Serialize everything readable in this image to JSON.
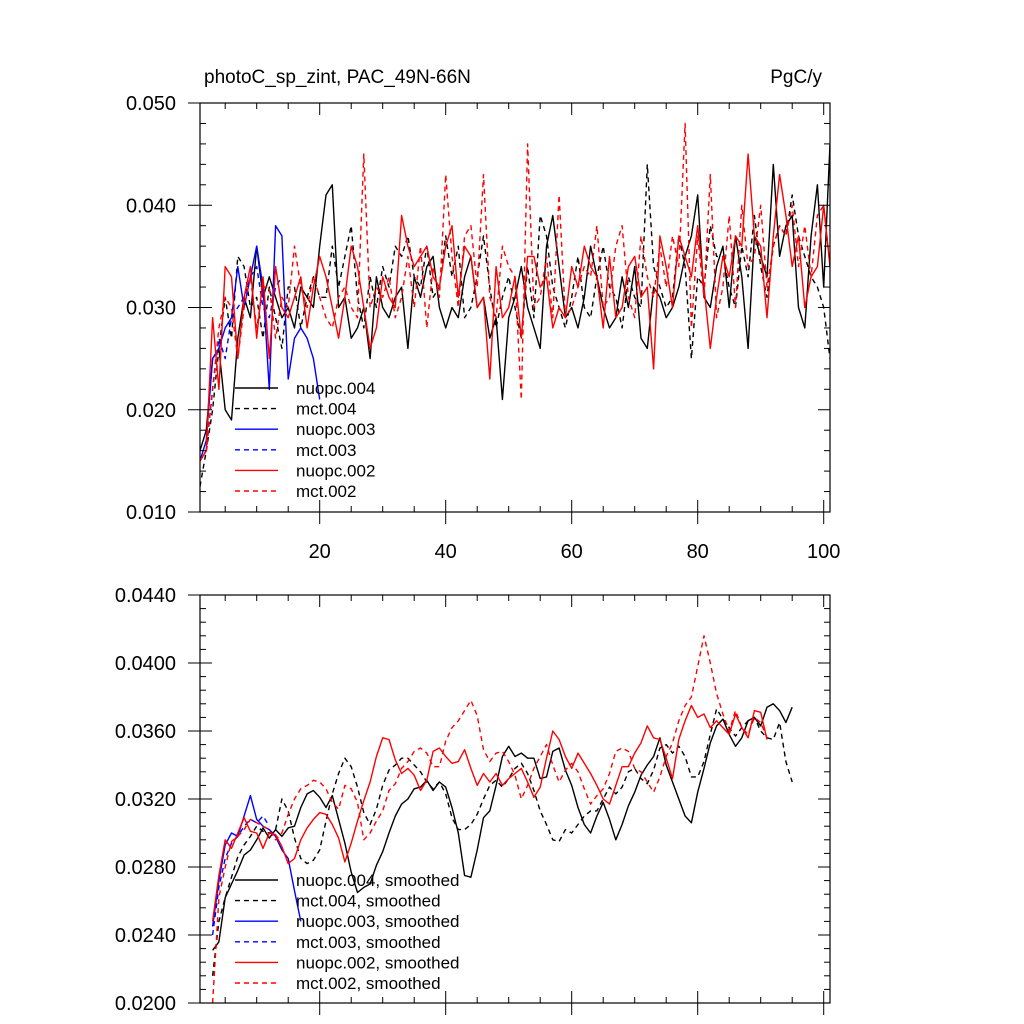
{
  "chart_data": [
    {
      "type": "line",
      "title": "photoC_sp_zint, PAC_49N-66N",
      "units": "PgC/y",
      "xlim": [
        1,
        101
      ],
      "ylim": [
        0.01,
        0.05
      ],
      "xticks": [
        20,
        40,
        60,
        80,
        100
      ],
      "xtick_labels": [
        "20",
        "40",
        "60",
        "80",
        "100"
      ],
      "yticks": [
        0.01,
        0.02,
        0.03,
        0.04,
        0.05
      ],
      "ytick_labels": [
        "0.010",
        "0.020",
        "0.030",
        "0.040",
        "0.050"
      ],
      "legend": [
        "nuopc.004",
        "mct.004",
        "nuopc.003",
        "mct.003",
        "nuopc.002",
        "mct.002"
      ],
      "series": [
        {
          "name": "nuopc.004",
          "color": "#000000",
          "dash": false,
          "x_start": 1,
          "values": [
            0.016,
            0.018,
            0.025,
            0.026,
            0.02,
            0.019,
            0.027,
            0.031,
            0.029,
            0.036,
            0.031,
            0.033,
            0.031,
            0.029,
            0.03,
            0.028,
            0.032,
            0.031,
            0.03,
            0.036,
            0.041,
            0.042,
            0.03,
            0.031,
            0.027,
            0.028,
            0.03,
            0.025,
            0.033,
            0.03,
            0.029,
            0.031,
            0.032,
            0.026,
            0.033,
            0.031,
            0.034,
            0.035,
            0.03,
            0.028,
            0.03,
            0.029,
            0.033,
            0.035,
            0.03,
            0.031,
            0.027,
            0.029,
            0.021,
            0.029,
            0.031,
            0.034,
            0.03,
            0.028,
            0.026,
            0.036,
            0.039,
            0.034,
            0.029,
            0.03,
            0.028,
            0.031,
            0.036,
            0.033,
            0.03,
            0.028,
            0.029,
            0.033,
            0.03,
            0.034,
            0.027,
            0.026,
            0.032,
            0.031,
            0.029,
            0.03,
            0.032,
            0.035,
            0.037,
            0.041,
            0.031,
            0.03,
            0.034,
            0.036,
            0.03,
            0.037,
            0.033,
            0.026,
            0.037,
            0.035,
            0.033,
            0.044,
            0.035,
            0.038,
            0.039,
            0.03,
            0.028,
            0.037,
            0.042,
            0.032,
            0.046
          ]
        },
        {
          "name": "mct.004",
          "color": "#000000",
          "dash": true,
          "x_start": 1,
          "values": [
            0.0125,
            0.016,
            0.02,
            0.026,
            0.031,
            0.027,
            0.035,
            0.034,
            0.03,
            0.031,
            0.027,
            0.032,
            0.029,
            0.026,
            0.032,
            0.032,
            0.028,
            0.031,
            0.033,
            0.031,
            0.031,
            0.036,
            0.032,
            0.035,
            0.038,
            0.031,
            0.028,
            0.033,
            0.03,
            0.034,
            0.032,
            0.036,
            0.035,
            0.037,
            0.033,
            0.032,
            0.036,
            0.031,
            0.032,
            0.037,
            0.033,
            0.036,
            0.029,
            0.03,
            0.033,
            0.037,
            0.032,
            0.028,
            0.031,
            0.033,
            0.03,
            0.027,
            0.034,
            0.029,
            0.039,
            0.037,
            0.032,
            0.03,
            0.028,
            0.031,
            0.035,
            0.03,
            0.029,
            0.033,
            0.036,
            0.032,
            0.031,
            0.028,
            0.033,
            0.031,
            0.03,
            0.044,
            0.034,
            0.032,
            0.03,
            0.031,
            0.037,
            0.034,
            0.025,
            0.033,
            0.032,
            0.038,
            0.035,
            0.035,
            0.032,
            0.03,
            0.036,
            0.033,
            0.039,
            0.034,
            0.031,
            0.036,
            0.038,
            0.037,
            0.041,
            0.037,
            0.035,
            0.033,
            0.032,
            0.03,
            0.025
          ]
        },
        {
          "name": "nuopc.003",
          "color": "#0000ff",
          "dash": false,
          "x_start": 1,
          "values": [
            0.015,
            0.017,
            0.025,
            0.026,
            0.028,
            0.029,
            0.034,
            0.03,
            0.033,
            0.036,
            0.032,
            0.022,
            0.038,
            0.037,
            0.023,
            0.027,
            0.028,
            0.027,
            0.025,
            0.021
          ]
        },
        {
          "name": "mct.003",
          "color": "#0000ff",
          "dash": true,
          "x_start": 1,
          "values": [
            0.015,
            0.016,
            0.022,
            0.027,
            0.025,
            0.029,
            0.03,
            0.031,
            0.033,
            0.034,
            0.03,
            0.029,
            0.032,
            0.033
          ]
        },
        {
          "name": "nuopc.002",
          "color": "#ff0000",
          "dash": false,
          "x_start": 1,
          "values": [
            0.015,
            0.016,
            0.029,
            0.022,
            0.034,
            0.033,
            0.025,
            0.031,
            0.034,
            0.027,
            0.033,
            0.025,
            0.034,
            0.03,
            0.029,
            0.031,
            0.033,
            0.028,
            0.032,
            0.035,
            0.033,
            0.03,
            0.027,
            0.031,
            0.036,
            0.034,
            0.03,
            0.026,
            0.028,
            0.033,
            0.031,
            0.03,
            0.039,
            0.036,
            0.034,
            0.035,
            0.036,
            0.033,
            0.032,
            0.036,
            0.038,
            0.031,
            0.036,
            0.035,
            0.03,
            0.031,
            0.023,
            0.034,
            0.029,
            0.03,
            0.033,
            0.027,
            0.035,
            0.035,
            0.032,
            0.033,
            0.028,
            0.03,
            0.029,
            0.034,
            0.032,
            0.036,
            0.034,
            0.033,
            0.028,
            0.035,
            0.029,
            0.03,
            0.034,
            0.035,
            0.031,
            0.032,
            0.024,
            0.037,
            0.034,
            0.03,
            0.037,
            0.035,
            0.033,
            0.038,
            0.032,
            0.026,
            0.031,
            0.035,
            0.033,
            0.037,
            0.036,
            0.045,
            0.037,
            0.036,
            0.029,
            0.037,
            0.043,
            0.039,
            0.034,
            0.037,
            0.03,
            0.033,
            0.034,
            0.04,
            0.034
          ]
        },
        {
          "name": "mct.002",
          "color": "#ff0000",
          "dash": true,
          "x_start": 1,
          "values": [
            0.015,
            0.016,
            0.022,
            0.028,
            0.031,
            0.03,
            0.025,
            0.03,
            0.033,
            0.028,
            0.032,
            0.032,
            0.027,
            0.031,
            0.03,
            0.036,
            0.032,
            0.03,
            0.033,
            0.031,
            0.029,
            0.028,
            0.031,
            0.032,
            0.03,
            0.029,
            0.045,
            0.03,
            0.032,
            0.031,
            0.033,
            0.029,
            0.031,
            0.035,
            0.03,
            0.036,
            0.028,
            0.034,
            0.031,
            0.043,
            0.035,
            0.03,
            0.037,
            0.038,
            0.032,
            0.043,
            0.031,
            0.029,
            0.036,
            0.034,
            0.033,
            0.021,
            0.046,
            0.03,
            0.031,
            0.035,
            0.029,
            0.041,
            0.029,
            0.03,
            0.032,
            0.034,
            0.033,
            0.038,
            0.03,
            0.031,
            0.036,
            0.038,
            0.031,
            0.029,
            0.037,
            0.033,
            0.031,
            0.036,
            0.032,
            0.037,
            0.034,
            0.048,
            0.028,
            0.037,
            0.031,
            0.043,
            0.029,
            0.032,
            0.039,
            0.03,
            0.04,
            0.034,
            0.035,
            0.04,
            0.032,
            0.036,
            0.038,
            0.037,
            0.04,
            0.034,
            0.038,
            0.033,
            0.039,
            0.04,
            0.034
          ]
        }
      ]
    },
    {
      "type": "line",
      "title": "",
      "xlim": [
        1,
        101
      ],
      "ylim": [
        0.02,
        0.044
      ],
      "xticks": [
        20,
        40,
        60,
        80,
        100
      ],
      "yticks": [
        0.02,
        0.024,
        0.028,
        0.032,
        0.036,
        0.04,
        0.044
      ],
      "ytick_labels": [
        "0.0200",
        "0.0240",
        "0.0280",
        "0.0320",
        "0.0360",
        "0.0400",
        "0.0440"
      ],
      "legend": [
        "nuopc.004, smoothed",
        "mct.004, smoothed",
        "nuopc.003, smoothed",
        "mct.003, smoothed",
        "nuopc.002, smoothed",
        "mct.002, smoothed"
      ],
      "series": [
        {
          "name": "nuopc.004, smoothed",
          "color": "#000000",
          "dash": false,
          "x_start": 3,
          "values": [
            0.0231,
            0.0236,
            0.0262,
            0.027,
            0.0278,
            0.0287,
            0.029,
            0.0296,
            0.0303,
            0.0297,
            0.0302,
            0.0298,
            0.0303,
            0.0304,
            0.0315,
            0.0323,
            0.0325,
            0.0321,
            0.0315,
            0.0322,
            0.0308,
            0.0294,
            0.0277,
            0.0265,
            0.0268,
            0.027,
            0.0281,
            0.0289,
            0.03,
            0.031,
            0.0317,
            0.032,
            0.0326,
            0.0327,
            0.0331,
            0.0325,
            0.033,
            0.0327,
            0.0315,
            0.03,
            0.0275,
            0.0274,
            0.029,
            0.0309,
            0.0313,
            0.0328,
            0.0345,
            0.0351,
            0.0345,
            0.0347,
            0.0344,
            0.0344,
            0.0332,
            0.0333,
            0.0348,
            0.035,
            0.0337,
            0.0328,
            0.0315,
            0.0305,
            0.03,
            0.031,
            0.0318,
            0.0308,
            0.0296,
            0.0305,
            0.0316,
            0.0324,
            0.0334,
            0.034,
            0.0345,
            0.0356,
            0.034,
            0.033,
            0.032,
            0.031,
            0.0306,
            0.0324,
            0.0338,
            0.0353,
            0.0363,
            0.0367,
            0.0358,
            0.0351,
            0.0356,
            0.0366,
            0.0368,
            0.0363,
            0.0374,
            0.0376,
            0.0372,
            0.0365,
            0.0374
          ]
        },
        {
          "name": "mct.004, smoothed",
          "color": "#000000",
          "dash": true,
          "x_start": 3,
          "values": [
            0.0216,
            0.0248,
            0.0262,
            0.0274,
            0.0286,
            0.0293,
            0.0298,
            0.0304,
            0.0301,
            0.03,
            0.0302,
            0.032,
            0.0313,
            0.0297,
            0.0285,
            0.0282,
            0.0284,
            0.029,
            0.0307,
            0.0323,
            0.0335,
            0.0344,
            0.0339,
            0.0327,
            0.0312,
            0.0305,
            0.0314,
            0.0328,
            0.0337,
            0.034,
            0.0344,
            0.0344,
            0.034,
            0.0336,
            0.033,
            0.0326,
            0.033,
            0.0323,
            0.0309,
            0.0302,
            0.0302,
            0.0305,
            0.0311,
            0.032,
            0.0328,
            0.0331,
            0.0327,
            0.0332,
            0.0338,
            0.0341,
            0.0335,
            0.0325,
            0.0313,
            0.0305,
            0.0296,
            0.0295,
            0.0302,
            0.03,
            0.0305,
            0.031,
            0.0313,
            0.0313,
            0.032,
            0.0327,
            0.0323,
            0.0327,
            0.0336,
            0.0338,
            0.0332,
            0.0329,
            0.0337,
            0.035,
            0.0352,
            0.0347,
            0.0351,
            0.0345,
            0.0333,
            0.0333,
            0.0342,
            0.0358,
            0.0373,
            0.0367,
            0.0362,
            0.0357,
            0.0362,
            0.0366,
            0.0368,
            0.036,
            0.0356,
            0.0355,
            0.0365,
            0.0342,
            0.033
          ]
        },
        {
          "name": "nuopc.003, smoothed",
          "color": "#0000ff",
          "dash": false,
          "x_start": 3,
          "values": [
            0.0245,
            0.0272,
            0.0293,
            0.03,
            0.0298,
            0.031,
            0.0322,
            0.0308,
            0.0304,
            0.0302,
            0.0298,
            0.029,
            0.0285,
            0.0266,
            0.0248
          ]
        },
        {
          "name": "mct.003, smoothed",
          "color": "#0000ff",
          "dash": true,
          "x_start": 3,
          "values": [
            0.024,
            0.0268,
            0.0285,
            0.0294,
            0.0298,
            0.0304,
            0.0308,
            0.0306,
            0.031,
            0.0304
          ]
        },
        {
          "name": "nuopc.002, smoothed",
          "color": "#ff0000",
          "dash": false,
          "x_start": 3,
          "values": [
            0.0248,
            0.0275,
            0.0296,
            0.0291,
            0.03,
            0.0309,
            0.0301,
            0.03,
            0.0291,
            0.03,
            0.0299,
            0.0292,
            0.0282,
            0.0285,
            0.0296,
            0.0303,
            0.0308,
            0.0312,
            0.0311,
            0.0305,
            0.0297,
            0.0283,
            0.0294,
            0.0307,
            0.0319,
            0.033,
            0.0345,
            0.0356,
            0.0355,
            0.0343,
            0.0335,
            0.0338,
            0.0334,
            0.0325,
            0.0331,
            0.0348,
            0.035,
            0.0345,
            0.0341,
            0.0342,
            0.0349,
            0.0338,
            0.0328,
            0.0335,
            0.033,
            0.0335,
            0.0328,
            0.0332,
            0.0335,
            0.0338,
            0.033,
            0.0321,
            0.0327,
            0.0344,
            0.036,
            0.0355,
            0.0345,
            0.0338,
            0.0347,
            0.0341,
            0.0335,
            0.0328,
            0.032,
            0.0317,
            0.0328,
            0.0339,
            0.0339,
            0.0347,
            0.0353,
            0.0363,
            0.0356,
            0.0355,
            0.0344,
            0.0332,
            0.0355,
            0.0366,
            0.0375,
            0.0368,
            0.037,
            0.0362,
            0.0366,
            0.0362,
            0.0358,
            0.037,
            0.0362,
            0.0356,
            0.0372,
            0.0371,
            0.0355
          ]
        },
        {
          "name": "mct.002, smoothed",
          "color": "#ff0000",
          "dash": true,
          "x_start": 3,
          "values": [
            0.02,
            0.0262,
            0.028,
            0.0295,
            0.0298,
            0.0302,
            0.0308,
            0.0306,
            0.0304,
            0.0302,
            0.0296,
            0.03,
            0.0311,
            0.032,
            0.0326,
            0.0328,
            0.0331,
            0.033,
            0.0326,
            0.0318,
            0.0314,
            0.0328,
            0.0326,
            0.0318,
            0.0296,
            0.03,
            0.0307,
            0.0313,
            0.0325,
            0.0329,
            0.0338,
            0.0342,
            0.0348,
            0.035,
            0.0347,
            0.0339,
            0.0339,
            0.0354,
            0.0362,
            0.0366,
            0.0372,
            0.0378,
            0.0369,
            0.0349,
            0.0342,
            0.0347,
            0.0348,
            0.0342,
            0.0334,
            0.032,
            0.0328,
            0.0338,
            0.0345,
            0.0352,
            0.034,
            0.033,
            0.0337,
            0.0341,
            0.0336,
            0.0326,
            0.0317,
            0.0322,
            0.0326,
            0.0335,
            0.0348,
            0.035,
            0.0348,
            0.0338,
            0.0336,
            0.033,
            0.0324,
            0.0333,
            0.0345,
            0.0353,
            0.0366,
            0.0375,
            0.038,
            0.0398,
            0.0416,
            0.04,
            0.0382,
            0.037,
            0.036,
            0.0372,
            0.0362,
            0.0358,
            0.0368,
            0.0365,
            0.0356
          ]
        }
      ]
    }
  ]
}
